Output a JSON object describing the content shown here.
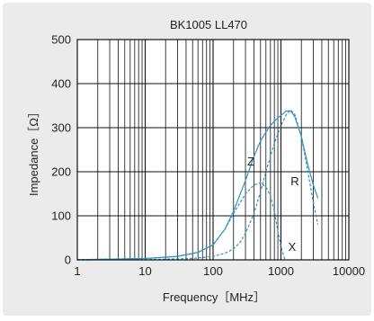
{
  "chart_data": {
    "type": "line",
    "title": "BK1005  LL470",
    "xlabel": "Frequency［MHz］",
    "ylabel": "Impedance［Ω］",
    "xscale": "log",
    "xlim": [
      1,
      10000
    ],
    "ylim": [
      0,
      500
    ],
    "xticks": [
      "1",
      "10",
      "100",
      "1000",
      "10000"
    ],
    "yticks": [
      "0",
      "100",
      "200",
      "300",
      "400",
      "500"
    ],
    "grid": true,
    "series": [
      {
        "name": "Z",
        "style": "solid",
        "x": [
          1,
          10,
          30,
          60,
          100,
          150,
          200,
          300,
          400,
          500,
          600,
          700,
          800,
          1000,
          1200,
          1400,
          1600,
          2000,
          2500,
          3000,
          3500
        ],
        "y": [
          0.5,
          3,
          8,
          17,
          34,
          70,
          110,
          180,
          235,
          270,
          290,
          305,
          315,
          328,
          338,
          338,
          325,
          280,
          215,
          170,
          140
        ]
      },
      {
        "name": "R",
        "style": "dashed",
        "x": [
          1,
          10,
          50,
          100,
          150,
          200,
          250,
          300,
          400,
          500,
          600,
          800,
          1000,
          1200,
          1400,
          1600,
          2000,
          2500,
          3000,
          3500
        ],
        "y": [
          0,
          0.5,
          3,
          8,
          15,
          25,
          40,
          60,
          105,
          155,
          200,
          265,
          305,
          330,
          340,
          330,
          280,
          200,
          130,
          80
        ]
      },
      {
        "name": "X",
        "style": "dashed",
        "x": [
          1,
          10,
          30,
          60,
          100,
          150,
          200,
          300,
          400,
          500,
          600,
          700,
          800,
          900,
          1000,
          1100,
          1150
        ],
        "y": [
          0.5,
          3,
          8,
          17,
          34,
          70,
          105,
          150,
          170,
          175,
          165,
          145,
          110,
          65,
          30,
          8,
          0
        ]
      }
    ],
    "annotations": [
      "Z",
      "R",
      "X"
    ],
    "line_color": "#2e93c0"
  }
}
